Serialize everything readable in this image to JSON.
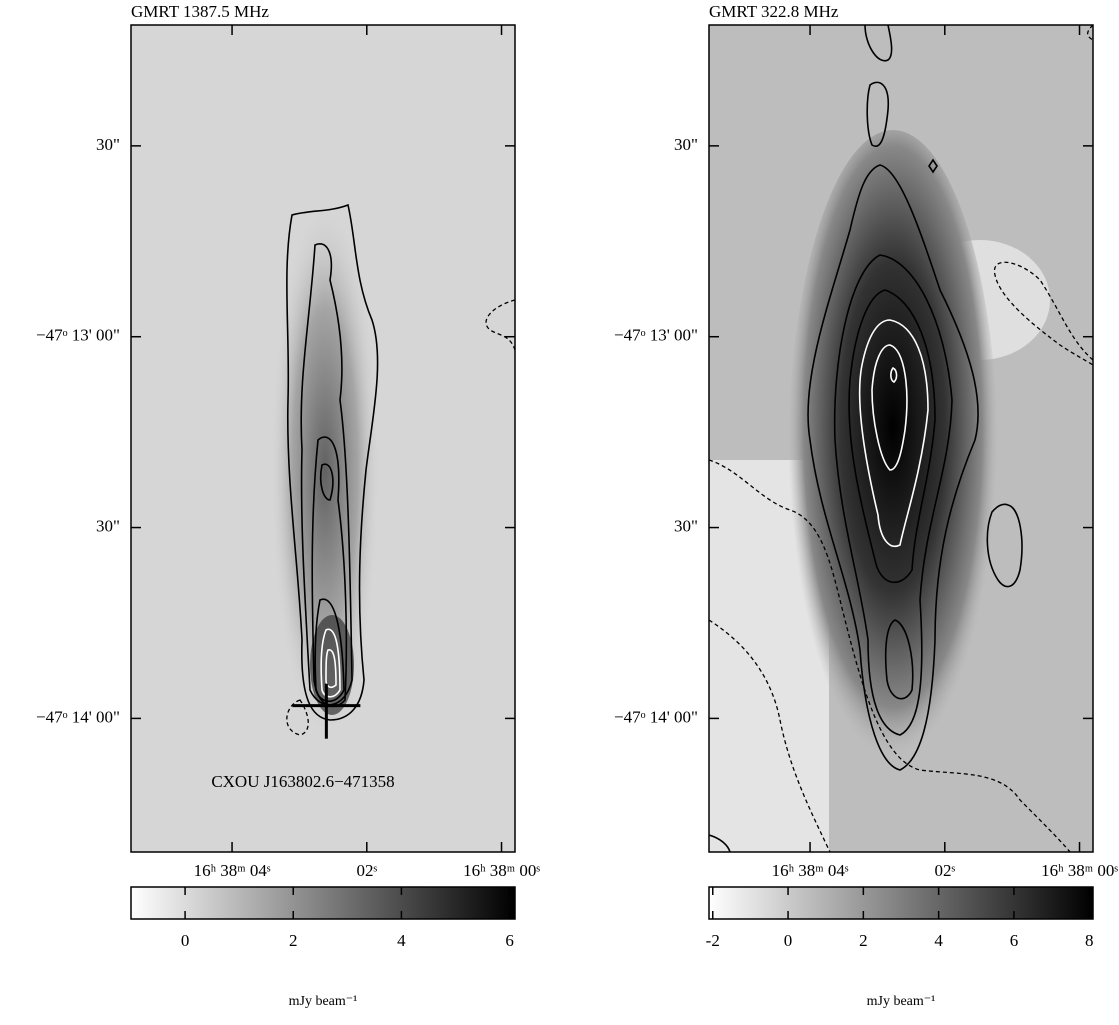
{
  "chart_data": [
    {
      "type": "image",
      "title": "GMRT 1387.5 MHz",
      "xlim": [
        5.5,
        -0.2
      ],
      "xticks": [
        {
          "value": 4,
          "label": "16ʰ 38ᵐ 04ˢ"
        },
        {
          "value": 2,
          "label": "02ˢ"
        },
        {
          "value": 0,
          "label": "16ʰ 38ᵐ 00ˢ"
        }
      ],
      "ylim": [
        -170061,
        -169931
      ],
      "yticks": [
        {
          "value": -169950,
          "label": "30\""
        },
        {
          "value": -169980,
          "label": "−47ᵒ 13' 00\""
        },
        {
          "value": -170010,
          "label": "30\""
        },
        {
          "value": -170040,
          "label": "−47ᵒ 14' 00\""
        }
      ],
      "colorbar": {
        "label": "mJy beam⁻¹",
        "lim": [
          -1,
          6.1
        ],
        "ticks": [
          0,
          2,
          4,
          6
        ]
      },
      "marker": {
        "x": 2.6,
        "y": -170038
      },
      "annotation": "CXOU J163802.6−471358"
    },
    {
      "type": "image",
      "title": "GMRT 322.8 MHz",
      "xlim": [
        5.5,
        -0.2
      ],
      "xticks": [
        {
          "value": 4,
          "label": "16ʰ 38ᵐ 04ˢ"
        },
        {
          "value": 2,
          "label": "02ˢ"
        },
        {
          "value": 0,
          "label": "16ʰ 38ᵐ 00ˢ"
        }
      ],
      "ylim": [
        -170061,
        -169931
      ],
      "yticks": [
        {
          "value": -169950,
          "label": "30\""
        },
        {
          "value": -169980,
          "label": "−47ᵒ 13' 00\""
        },
        {
          "value": -170010,
          "label": "30\""
        },
        {
          "value": -170040,
          "label": "−47ᵒ 14' 00\""
        }
      ],
      "colorbar": {
        "label": "mJy beam⁻¹",
        "lim": [
          -2.1,
          8.1
        ],
        "ticks": [
          -2,
          0,
          2,
          4,
          6,
          8
        ]
      }
    }
  ]
}
